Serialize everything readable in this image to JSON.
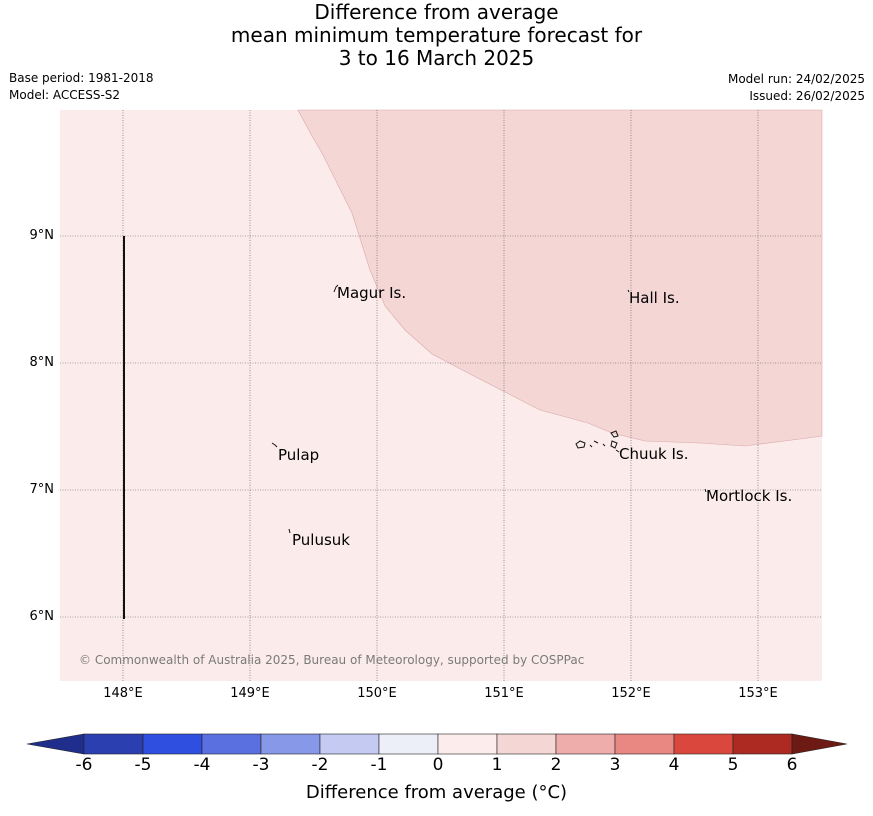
{
  "header": {
    "title_line1": "Difference from average",
    "title_line2": "mean minimum temperature forecast for",
    "title_line3": "3 to 16 March 2025",
    "base_period": "Base period: 1981-2018",
    "model": "Model: ACCESS-S2",
    "model_run": "Model run: 24/02/2025",
    "issued": "Issued: 26/02/2025"
  },
  "map": {
    "lat_labels": [
      "9°N",
      "8°N",
      "7°N",
      "6°N"
    ],
    "lon_labels": [
      "148°E",
      "149°E",
      "150°E",
      "151°E",
      "152°E",
      "153°E"
    ],
    "places": [
      "Magur Is.",
      "Hall Is.",
      "Pulap",
      "Chuuk Is.",
      "Mortlock Is.",
      "Pulusuk"
    ],
    "fill_colors": {
      "band_0_to_1": "#fbeceb",
      "band_1_to_2": "#f4d6d5"
    },
    "copyright": "© Commonwealth of Australia 2025, Bureau of Meteorology, supported by COSPPac"
  },
  "colorbar": {
    "labels": [
      "-6",
      "-5",
      "-4",
      "-3",
      "-2",
      "-1",
      "0",
      "1",
      "2",
      "3",
      "4",
      "5",
      "6"
    ],
    "colors": [
      "#1f2e8c",
      "#2b3fb0",
      "#2f4fe0",
      "#5a70e0",
      "#8898e8",
      "#c4caf2",
      "#eceef8",
      "#fcedec",
      "#f4d6d5",
      "#eeadab",
      "#e98783",
      "#d9473d",
      "#ad2a22",
      "#6e1a14"
    ],
    "title": "Difference from average (°C)"
  }
}
